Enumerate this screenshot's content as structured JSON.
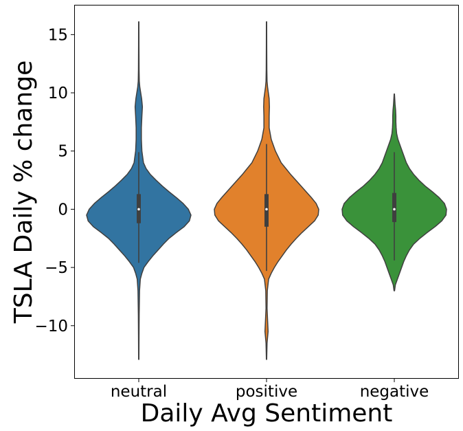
{
  "chart_data": {
    "type": "violin",
    "xlabel": "Daily Avg Sentiment",
    "ylabel": "TSLA Daily % change",
    "categories": [
      "neutral",
      "positive",
      "negative"
    ],
    "ylim": [
      -14.5,
      17.5
    ],
    "yticks": [
      -10,
      -5,
      0,
      5,
      10,
      15
    ],
    "ytick_labels": [
      "−10",
      "−5",
      "0",
      "5",
      "10",
      "15"
    ],
    "grid": false,
    "colors": [
      "#3274a1",
      "#e1812c",
      "#3a923a"
    ],
    "series": [
      {
        "category": "neutral",
        "min": -12.9,
        "max": 16.1,
        "q1": -1.2,
        "median": 0.0,
        "q3": 1.3,
        "whisker_low": -4.6,
        "whisker_high": 4.9,
        "density": [
          [
            -12.9,
            0.003
          ],
          [
            -11,
            0.005
          ],
          [
            -9,
            0.008
          ],
          [
            -7,
            0.015
          ],
          [
            -6,
            0.03
          ],
          [
            -5.5,
            0.06
          ],
          [
            -5,
            0.1
          ],
          [
            -4.5,
            0.18
          ],
          [
            -4,
            0.27
          ],
          [
            -3.5,
            0.37
          ],
          [
            -3,
            0.47
          ],
          [
            -2.5,
            0.58
          ],
          [
            -2,
            0.72
          ],
          [
            -1.5,
            0.87
          ],
          [
            -1,
            0.97
          ],
          [
            -0.5,
            1.0
          ],
          [
            0,
            0.95
          ],
          [
            0.5,
            0.85
          ],
          [
            1,
            0.72
          ],
          [
            1.5,
            0.58
          ],
          [
            2,
            0.45
          ],
          [
            2.5,
            0.33
          ],
          [
            3,
            0.22
          ],
          [
            3.5,
            0.14
          ],
          [
            4,
            0.09
          ],
          [
            5,
            0.06
          ],
          [
            6,
            0.05
          ],
          [
            7,
            0.05
          ],
          [
            8,
            0.06
          ],
          [
            8.8,
            0.07
          ],
          [
            9.5,
            0.055
          ],
          [
            10.5,
            0.02
          ],
          [
            11,
            0.01
          ],
          [
            12,
            0.006
          ],
          [
            14,
            0.004
          ],
          [
            16.1,
            0.003
          ]
        ]
      },
      {
        "category": "positive",
        "min": -12.9,
        "max": 16.1,
        "q1": -1.5,
        "median": 0.0,
        "q3": 1.3,
        "whisker_low": -5.3,
        "whisker_high": 5.6,
        "density": [
          [
            -12.9,
            0.003
          ],
          [
            -11.5,
            0.01
          ],
          [
            -10.5,
            0.03
          ],
          [
            -9.5,
            0.02
          ],
          [
            -8.5,
            0.01
          ],
          [
            -7,
            0.015
          ],
          [
            -6,
            0.04
          ],
          [
            -5.5,
            0.09
          ],
          [
            -5,
            0.15
          ],
          [
            -4.5,
            0.22
          ],
          [
            -4,
            0.3
          ],
          [
            -3.5,
            0.38
          ],
          [
            -3,
            0.47
          ],
          [
            -2.5,
            0.57
          ],
          [
            -2,
            0.68
          ],
          [
            -1.5,
            0.8
          ],
          [
            -1,
            0.92
          ],
          [
            -0.5,
            0.99
          ],
          [
            0,
            1.0
          ],
          [
            0.5,
            0.95
          ],
          [
            1,
            0.86
          ],
          [
            1.5,
            0.76
          ],
          [
            2,
            0.66
          ],
          [
            2.5,
            0.56
          ],
          [
            3,
            0.46
          ],
          [
            3.5,
            0.37
          ],
          [
            4,
            0.28
          ],
          [
            5,
            0.17
          ],
          [
            6,
            0.09
          ],
          [
            7,
            0.05
          ],
          [
            8,
            0.05
          ],
          [
            8.8,
            0.055
          ],
          [
            9.5,
            0.05
          ],
          [
            10.5,
            0.02
          ],
          [
            11,
            0.01
          ],
          [
            12,
            0.006
          ],
          [
            14,
            0.004
          ],
          [
            16.1,
            0.003
          ]
        ]
      },
      {
        "category": "negative",
        "min": -7.0,
        "max": 9.9,
        "q1": -1.1,
        "median": 0.0,
        "q3": 1.4,
        "whisker_low": -4.4,
        "whisker_high": 4.9,
        "density": [
          [
            -7,
            0.005
          ],
          [
            -6.5,
            0.02
          ],
          [
            -6,
            0.06
          ],
          [
            -5.5,
            0.1
          ],
          [
            -5,
            0.14
          ],
          [
            -4.5,
            0.18
          ],
          [
            -4,
            0.23
          ],
          [
            -3.5,
            0.29
          ],
          [
            -3,
            0.37
          ],
          [
            -2.5,
            0.49
          ],
          [
            -2,
            0.63
          ],
          [
            -1.5,
            0.78
          ],
          [
            -1,
            0.91
          ],
          [
            -0.5,
            0.99
          ],
          [
            0,
            1.0
          ],
          [
            0.5,
            0.96
          ],
          [
            1,
            0.86
          ],
          [
            1.5,
            0.73
          ],
          [
            2,
            0.59
          ],
          [
            2.5,
            0.47
          ],
          [
            3,
            0.37
          ],
          [
            3.5,
            0.29
          ],
          [
            4,
            0.23
          ],
          [
            4.5,
            0.19
          ],
          [
            5,
            0.15
          ],
          [
            5.5,
            0.11
          ],
          [
            6,
            0.07
          ],
          [
            6.5,
            0.045
          ],
          [
            7,
            0.035
          ],
          [
            7.5,
            0.03
          ],
          [
            8,
            0.03
          ],
          [
            8.5,
            0.025
          ],
          [
            9,
            0.015
          ],
          [
            9.9,
            0.003
          ]
        ]
      }
    ]
  }
}
